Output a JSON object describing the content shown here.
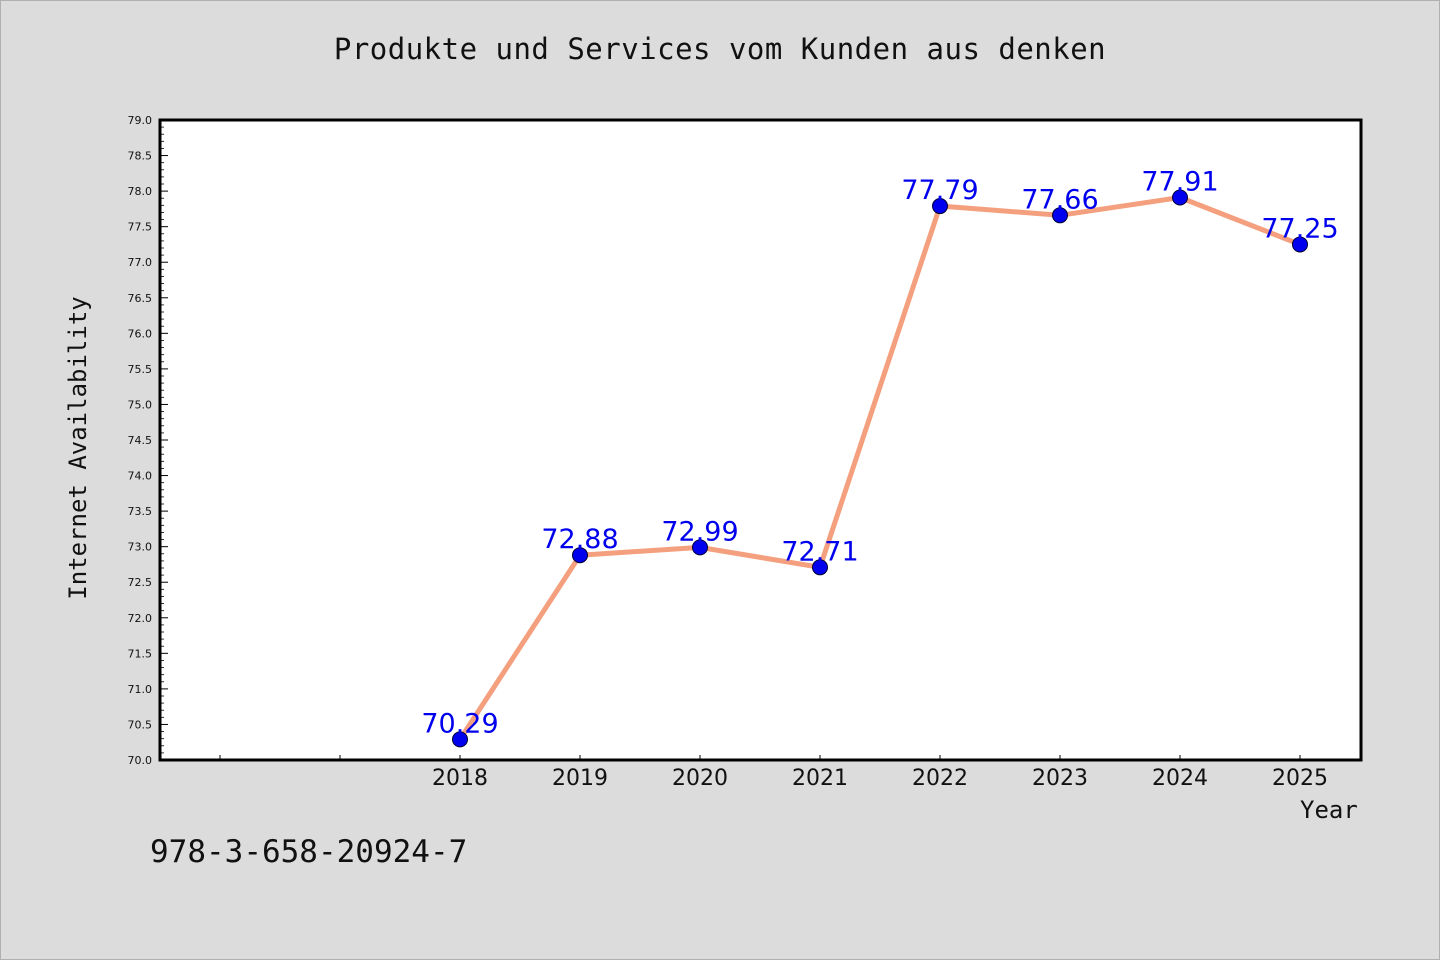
{
  "page": {
    "background": "#dcdcdc",
    "isbn": "978-3-658-20924-7"
  },
  "chart_data": {
    "type": "line",
    "title": "Produkte und Services vom Kunden aus denken",
    "xlabel": "Year",
    "ylabel": "Internet Availability",
    "ylim": [
      70.0,
      79.0
    ],
    "y_tick_step": 0.5,
    "x": [
      "2018",
      "2019",
      "2020",
      "2021",
      "2022",
      "2023",
      "2024",
      "2025"
    ],
    "series": [
      {
        "values": [
          70.29,
          72.88,
          72.99,
          72.71,
          77.79,
          77.66,
          77.91,
          77.25
        ],
        "data_labels": [
          "70.29",
          "72.88",
          "72.99",
          "72.71",
          "77.79",
          "77.66",
          "77.91",
          "77.25"
        ],
        "line_color": "#f4a07e",
        "marker_color": "#0000ee",
        "label_color": "#0000ee"
      }
    ],
    "grid": false,
    "legend": "none",
    "colors": {
      "plot_background": "#ffffff",
      "axes": "#000000"
    }
  }
}
